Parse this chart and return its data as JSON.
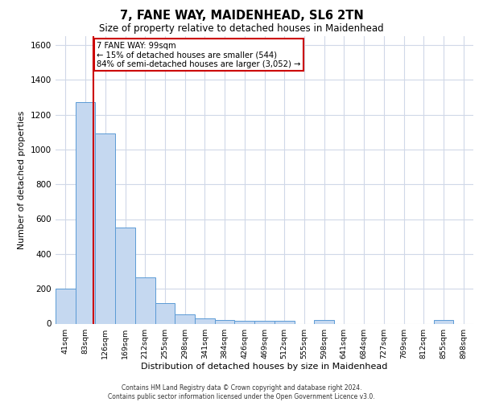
{
  "title1": "7, FANE WAY, MAIDENHEAD, SL6 2TN",
  "title2": "Size of property relative to detached houses in Maidenhead",
  "xlabel": "Distribution of detached houses by size in Maidenhead",
  "ylabel": "Number of detached properties",
  "bin_labels": [
    "41sqm",
    "83sqm",
    "126sqm",
    "169sqm",
    "212sqm",
    "255sqm",
    "298sqm",
    "341sqm",
    "384sqm",
    "426sqm",
    "469sqm",
    "512sqm",
    "555sqm",
    "598sqm",
    "641sqm",
    "684sqm",
    "727sqm",
    "769sqm",
    "812sqm",
    "855sqm",
    "898sqm"
  ],
  "bar_heights": [
    200,
    1270,
    1090,
    550,
    265,
    120,
    55,
    30,
    20,
    15,
    15,
    15,
    0,
    20,
    0,
    0,
    0,
    0,
    0,
    20,
    0
  ],
  "bar_color": "#c5d8f0",
  "bar_edge_color": "#5b9bd5",
  "property_line_x": 1.42,
  "property_line_color": "#cc0000",
  "annotation_text": "7 FANE WAY: 99sqm\n← 15% of detached houses are smaller (544)\n84% of semi-detached houses are larger (3,052) →",
  "annotation_box_color": "#ffffff",
  "annotation_box_edge": "#cc0000",
  "ylim": [
    0,
    1650
  ],
  "yticks": [
    0,
    200,
    400,
    600,
    800,
    1000,
    1200,
    1400,
    1600
  ],
  "background_color": "#ffffff",
  "grid_color": "#d0d8e8",
  "footer1": "Contains HM Land Registry data © Crown copyright and database right 2024.",
  "footer2": "Contains public sector information licensed under the Open Government Licence v3.0."
}
